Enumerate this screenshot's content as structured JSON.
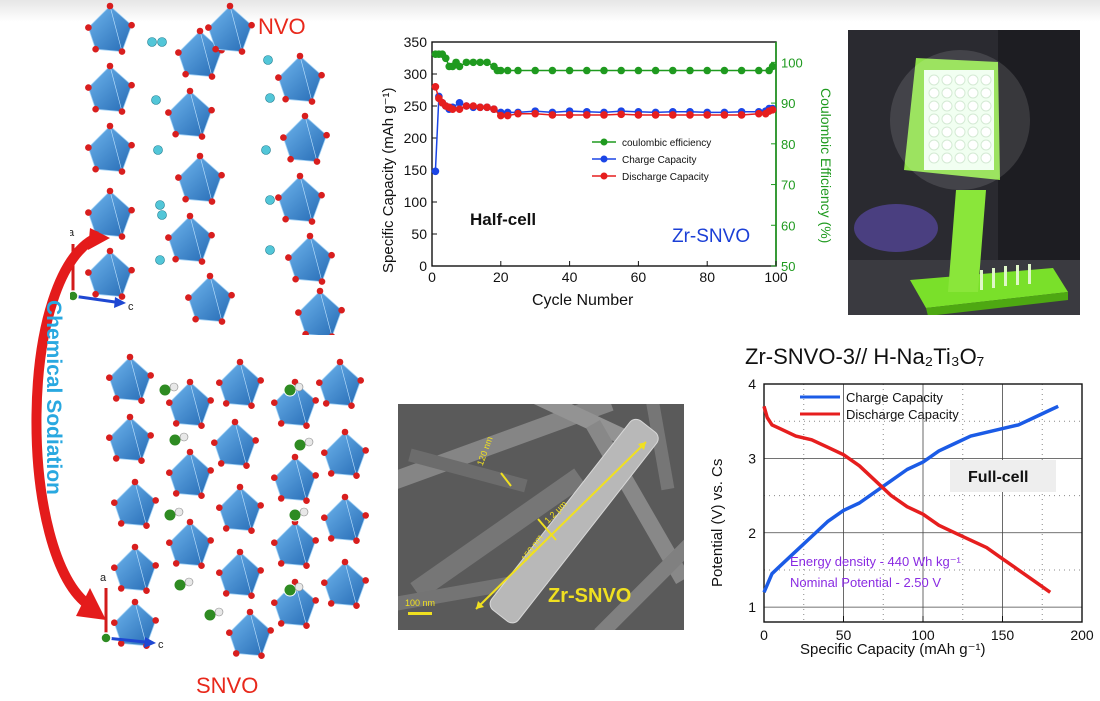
{
  "structures": {
    "top_label": "NVO",
    "bottom_label": "SNVO",
    "arrow_label": "Chemical Sodiation",
    "axis_a": "a",
    "axis_c": "c",
    "colors": {
      "octahedra": "#3f8fd6",
      "oxygen": "#d81e1e",
      "sodium": "#2e8b22",
      "water": "#52c6d8",
      "label_red": "#e8281b",
      "arrow_label": "#29a8e0"
    }
  },
  "sem": {
    "label": "Zr-SNVO",
    "scale_bar": "100 nm",
    "dims": [
      "120 nm",
      "1.2 μm",
      "150 nm"
    ]
  },
  "photo": {
    "description_icon": "led-lamp-photo"
  },
  "fullcell_title": "Zr-SNVO-3// H-Na₂Ti₃O₇",
  "chart_data": [
    {
      "type": "scatter",
      "title": "",
      "inset_label": "Half-cell",
      "material_label": "Zr-SNVO",
      "xlabel": "Cycle Number",
      "ylabel": "Specific Capacity (mAh g⁻¹)",
      "y2label": "Coulombic Efficiency (%)",
      "xlim": [
        0,
        100
      ],
      "ylim": [
        0,
        350
      ],
      "y2lim": [
        50,
        105
      ],
      "xticks": [
        "0",
        "20",
        "40",
        "60",
        "80",
        "100"
      ],
      "yticks": [
        "0",
        "50",
        "100",
        "150",
        "200",
        "250",
        "300",
        "350"
      ],
      "y2ticks": [
        "50",
        "60",
        "70",
        "80",
        "90",
        "100"
      ],
      "legend": [
        "coulombic efficiency",
        "Charge Capacity",
        "Discharge Capacity"
      ],
      "legend_position": "center-right",
      "series": [
        {
          "name": "coulombic efficiency",
          "color": "#1f9a1f",
          "axis": "right",
          "x": [
            1,
            2,
            3,
            4,
            5,
            6,
            7,
            8,
            10,
            12,
            14,
            16,
            18,
            19,
            20,
            22,
            25,
            30,
            35,
            40,
            45,
            50,
            55,
            60,
            65,
            70,
            75,
            80,
            85,
            90,
            95,
            98,
            99
          ],
          "y": [
            102,
            102,
            102,
            101,
            99,
            99,
            100,
            99,
            100,
            100,
            100,
            100,
            99,
            98,
            98,
            98,
            98,
            98,
            98,
            98,
            98,
            98,
            98,
            98,
            98,
            98,
            98,
            98,
            98,
            98,
            98,
            98,
            99
          ]
        },
        {
          "name": "Charge Capacity",
          "color": "#1b45e6",
          "axis": "left",
          "x": [
            1,
            2,
            3,
            4,
            5,
            6,
            8,
            10,
            12,
            14,
            16,
            18,
            20,
            22,
            25,
            30,
            35,
            40,
            45,
            50,
            55,
            60,
            65,
            70,
            75,
            80,
            85,
            90,
            95,
            97,
            98,
            99
          ],
          "y": [
            148,
            265,
            255,
            250,
            245,
            248,
            255,
            250,
            248,
            248,
            248,
            245,
            240,
            240,
            240,
            242,
            240,
            242,
            241,
            240,
            242,
            241,
            240,
            241,
            241,
            240,
            240,
            241,
            241,
            242,
            246,
            246
          ]
        },
        {
          "name": "Discharge Capacity",
          "color": "#e61e1e",
          "axis": "left",
          "x": [
            1,
            2,
            3,
            4,
            5,
            6,
            8,
            10,
            12,
            14,
            16,
            18,
            20,
            22,
            25,
            30,
            35,
            40,
            45,
            50,
            55,
            60,
            65,
            70,
            75,
            80,
            85,
            90,
            95,
            97,
            98,
            99
          ],
          "y": [
            280,
            262,
            255,
            250,
            248,
            245,
            245,
            250,
            250,
            248,
            248,
            245,
            235,
            235,
            238,
            238,
            236,
            236,
            236,
            236,
            237,
            236,
            236,
            236,
            236,
            236,
            236,
            236,
            238,
            238,
            242,
            244
          ]
        }
      ],
      "grid": false
    },
    {
      "type": "line",
      "title": "Zr-SNVO-3// H-Na₂Ti₃O₇",
      "inset_label": "Full-cell",
      "xlabel": "Specific Capacity (mAh g⁻¹)",
      "ylabel": "Potential (V) vs. Cs",
      "xlim": [
        0,
        200
      ],
      "ylim": [
        0.8,
        4
      ],
      "xticks": [
        "0",
        "50",
        "100",
        "150",
        "200"
      ],
      "yticks": [
        "1",
        "2",
        "3",
        "4"
      ],
      "legend": [
        "Charge Capacity",
        "Discharge Capacity"
      ],
      "legend_position": "top-left",
      "annotations": [
        "Energy density - 440 Wh kg⁻¹",
        "Nominal Potential - 2.50 V"
      ],
      "series": [
        {
          "name": "Charge Capacity",
          "color": "#1b5be6",
          "x": [
            0,
            5,
            10,
            20,
            30,
            40,
            50,
            60,
            70,
            80,
            90,
            100,
            110,
            120,
            130,
            140,
            150,
            160,
            170,
            180,
            185
          ],
          "y": [
            1.2,
            1.45,
            1.55,
            1.75,
            1.95,
            2.15,
            2.3,
            2.4,
            2.55,
            2.7,
            2.85,
            2.95,
            3.1,
            3.2,
            3.3,
            3.35,
            3.4,
            3.45,
            3.55,
            3.65,
            3.7
          ]
        },
        {
          "name": "Discharge Capacity",
          "color": "#e61e1e",
          "x": [
            0,
            2,
            5,
            10,
            20,
            30,
            40,
            50,
            60,
            70,
            80,
            90,
            100,
            110,
            120,
            130,
            140,
            150,
            160,
            170,
            180
          ],
          "y": [
            3.7,
            3.55,
            3.45,
            3.4,
            3.3,
            3.25,
            3.15,
            3.05,
            2.9,
            2.7,
            2.5,
            2.35,
            2.25,
            2.1,
            2.0,
            1.9,
            1.8,
            1.65,
            1.5,
            1.35,
            1.2
          ]
        }
      ],
      "grid": true
    }
  ]
}
